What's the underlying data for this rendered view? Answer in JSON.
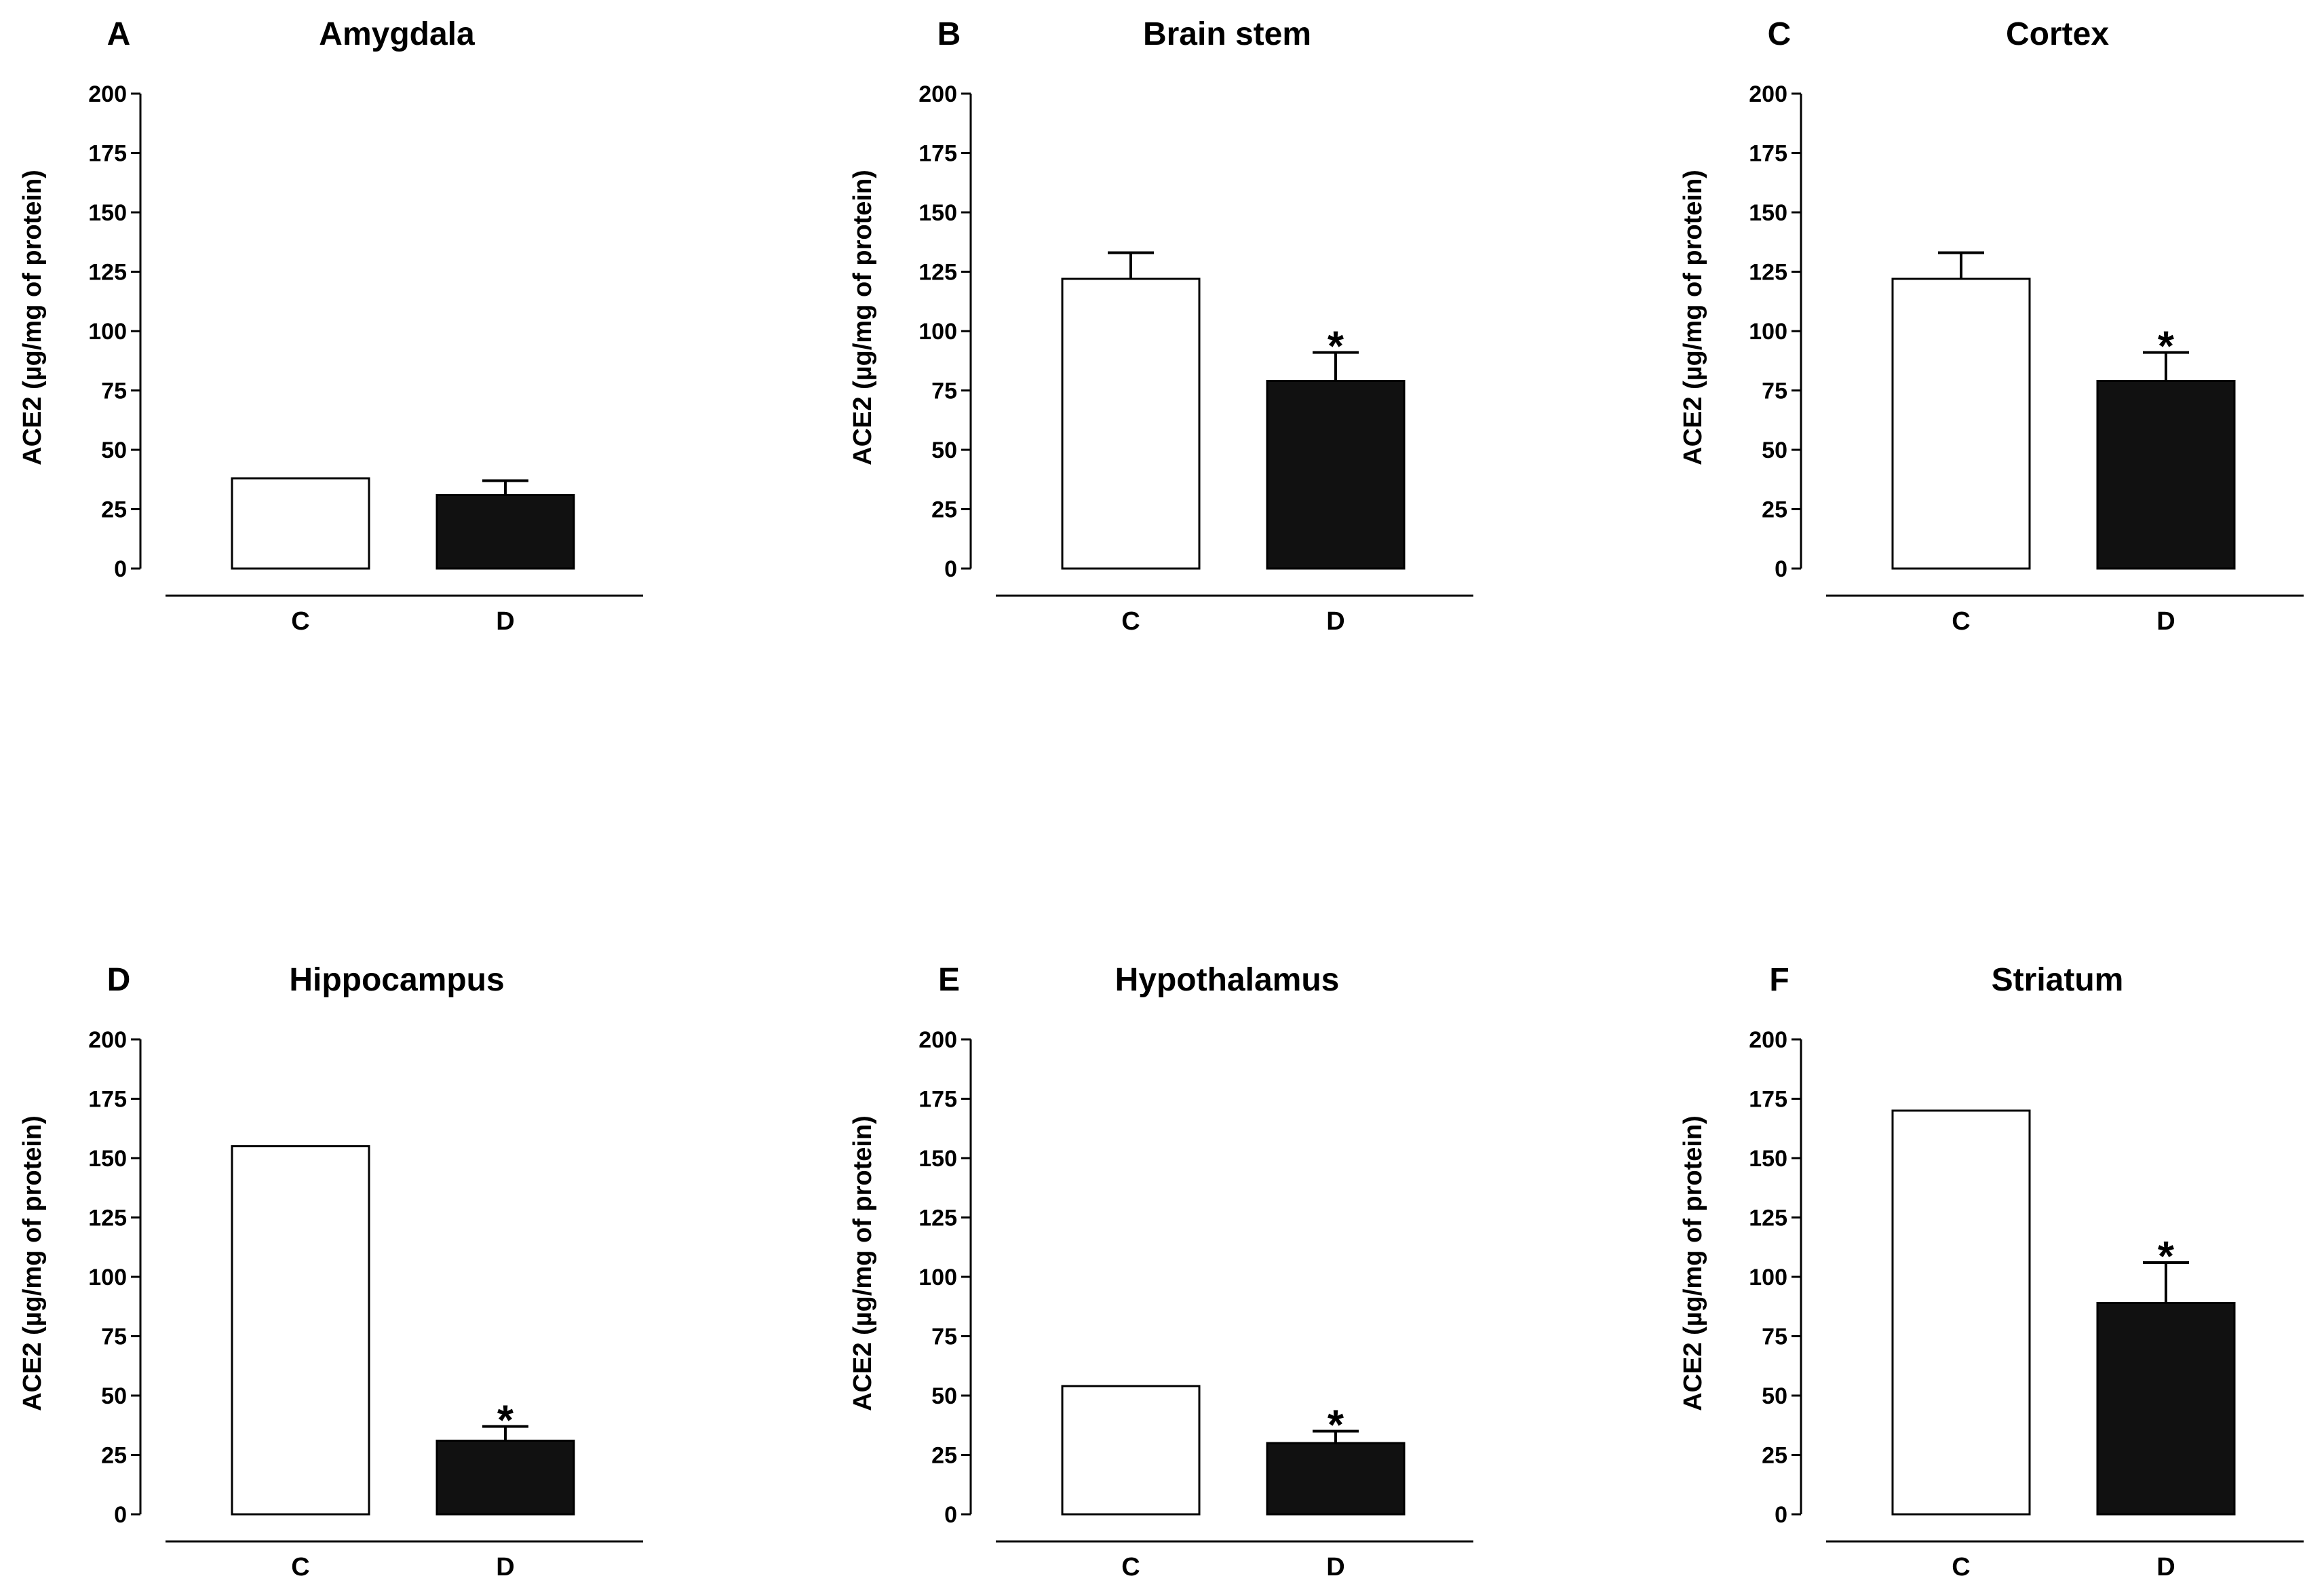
{
  "figure": {
    "colors": {
      "control": "#ffffff",
      "disease": "#111111",
      "stroke": "#000000"
    }
  },
  "chart_data": [
    {
      "type": "bar",
      "panel": "A",
      "title": "Amygdala",
      "ylabel": "ACE2 (µg/mg of protein)",
      "xlabel": "",
      "ylim": [
        0,
        200
      ],
      "yticks": [
        0,
        25,
        50,
        75,
        100,
        125,
        150,
        175,
        200
      ],
      "categories": [
        "C",
        "D"
      ],
      "values": [
        38,
        31
      ],
      "errors": [
        0,
        6
      ],
      "significance": [
        "",
        ""
      ]
    },
    {
      "type": "bar",
      "panel": "B",
      "title": "Brain stem",
      "ylabel": "ACE2 (µg/mg of protein)",
      "xlabel": "",
      "ylim": [
        0,
        200
      ],
      "yticks": [
        0,
        25,
        50,
        75,
        100,
        125,
        150,
        175,
        200
      ],
      "categories": [
        "C",
        "D"
      ],
      "values": [
        122,
        79
      ],
      "errors": [
        11,
        12
      ],
      "significance": [
        "",
        "*"
      ]
    },
    {
      "type": "bar",
      "panel": "C",
      "title": "Cortex",
      "ylabel": "ACE2 (µg/mg of protein)",
      "xlabel": "",
      "ylim": [
        0,
        200
      ],
      "yticks": [
        0,
        25,
        50,
        75,
        100,
        125,
        150,
        175,
        200
      ],
      "categories": [
        "C",
        "D"
      ],
      "values": [
        122,
        79
      ],
      "errors": [
        11,
        12
      ],
      "significance": [
        "",
        "*"
      ]
    },
    {
      "type": "bar",
      "panel": "D",
      "title": "Hippocampus",
      "ylabel": "ACE2 (µg/mg of protein)",
      "xlabel": "",
      "ylim": [
        0,
        200
      ],
      "yticks": [
        0,
        25,
        50,
        75,
        100,
        125,
        150,
        175,
        200
      ],
      "categories": [
        "C",
        "D"
      ],
      "values": [
        155,
        31
      ],
      "errors": [
        0,
        6
      ],
      "significance": [
        "",
        "*"
      ]
    },
    {
      "type": "bar",
      "panel": "E",
      "title": "Hypothalamus",
      "ylabel": "ACE2 (µg/mg of protein)",
      "xlabel": "",
      "ylim": [
        0,
        200
      ],
      "yticks": [
        0,
        25,
        50,
        75,
        100,
        125,
        150,
        175,
        200
      ],
      "categories": [
        "C",
        "D"
      ],
      "values": [
        54,
        30
      ],
      "errors": [
        0,
        5
      ],
      "significance": [
        "",
        "*"
      ]
    },
    {
      "type": "bar",
      "panel": "F",
      "title": "Striatum",
      "ylabel": "ACE2 (µg/mg of protein)",
      "xlabel": "",
      "ylim": [
        0,
        200
      ],
      "yticks": [
        0,
        25,
        50,
        75,
        100,
        125,
        150,
        175,
        200
      ],
      "categories": [
        "C",
        "D"
      ],
      "values": [
        170,
        89
      ],
      "errors": [
        0,
        17
      ],
      "significance": [
        "",
        "*"
      ]
    }
  ]
}
